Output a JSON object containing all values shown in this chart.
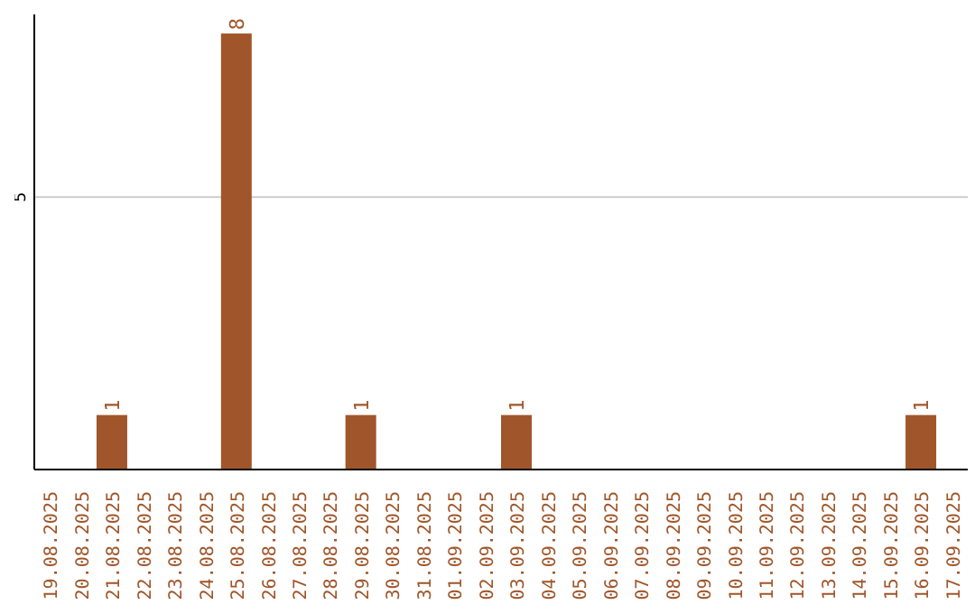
{
  "chart_data": {
    "type": "bar",
    "categories": [
      "19.08.2025",
      "20.08.2025",
      "21.08.2025",
      "22.08.2025",
      "23.08.2025",
      "24.08.2025",
      "25.08.2025",
      "26.08.2025",
      "27.08.2025",
      "28.08.2025",
      "29.08.2025",
      "30.08.2025",
      "31.08.2025",
      "01.09.2025",
      "02.09.2025",
      "03.09.2025",
      "04.09.2025",
      "05.09.2025",
      "06.09.2025",
      "07.09.2025",
      "08.09.2025",
      "09.09.2025",
      "10.09.2025",
      "11.09.2025",
      "12.09.2025",
      "13.09.2025",
      "14.09.2025",
      "15.09.2025",
      "16.09.2025",
      "17.09.2025"
    ],
    "values": [
      0,
      0,
      1,
      0,
      0,
      0,
      8,
      0,
      0,
      0,
      1,
      0,
      0,
      0,
      0,
      1,
      0,
      0,
      0,
      0,
      0,
      0,
      0,
      0,
      0,
      0,
      0,
      0,
      1,
      0
    ],
    "value_labels": [
      null,
      null,
      "1",
      null,
      null,
      null,
      "8",
      null,
      null,
      null,
      "1",
      null,
      null,
      null,
      null,
      "1",
      null,
      null,
      null,
      null,
      null,
      null,
      null,
      null,
      null,
      null,
      null,
      null,
      "1",
      null
    ],
    "color": "#a0562a",
    "ylim": [
      0,
      8.35
    ],
    "yticks": [
      5
    ],
    "grid": "y"
  }
}
